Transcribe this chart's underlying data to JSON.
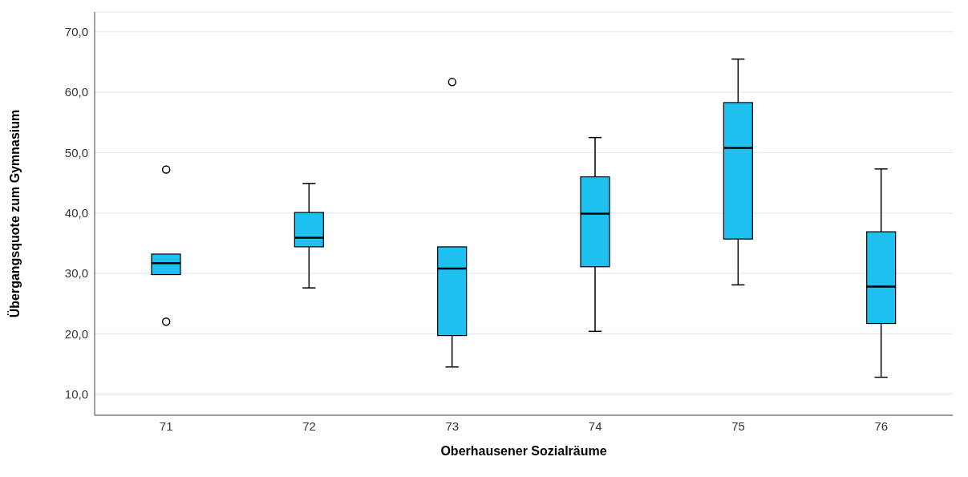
{
  "chart_data": {
    "type": "box",
    "xlabel": "Oberhausener Sozialräume",
    "ylabel": "Übergangsquote zum Gymnasium",
    "categories": [
      "71",
      "72",
      "73",
      "74",
      "75",
      "76"
    ],
    "color": "#1ec0f0",
    "marker": "circle",
    "grid": "y",
    "ylim": [
      6.5,
      73.3
    ],
    "yticks": [
      {
        "value": 10,
        "label": "10,0"
      },
      {
        "value": 20,
        "label": "20,0"
      },
      {
        "value": 30,
        "label": "30,0"
      },
      {
        "value": 40,
        "label": "40,0"
      },
      {
        "value": 50,
        "label": "50,0"
      },
      {
        "value": 60,
        "label": "60,0"
      },
      {
        "value": 70,
        "label": "70,0"
      }
    ],
    "boxes": [
      {
        "low": 29.8,
        "q1": 29.8,
        "median": 31.7,
        "q3": 33.2,
        "high": 33.2,
        "outliers": [
          47.2,
          22.0
        ]
      },
      {
        "low": 27.6,
        "q1": 34.4,
        "median": 35.9,
        "q3": 40.1,
        "high": 44.9
      },
      {
        "low": 14.5,
        "q1": 19.7,
        "median": 30.8,
        "q3": 34.4,
        "high": 34.4,
        "outliers": [
          61.7
        ]
      },
      {
        "low": 20.4,
        "q1": 31.1,
        "median": 39.9,
        "q3": 46.0,
        "high": 52.5
      },
      {
        "low": 28.1,
        "q1": 35.7,
        "median": 50.8,
        "q3": 58.3,
        "high": 65.5
      },
      {
        "low": 12.8,
        "q1": 21.7,
        "median": 27.8,
        "q3": 36.9,
        "high": 47.3
      }
    ]
  }
}
